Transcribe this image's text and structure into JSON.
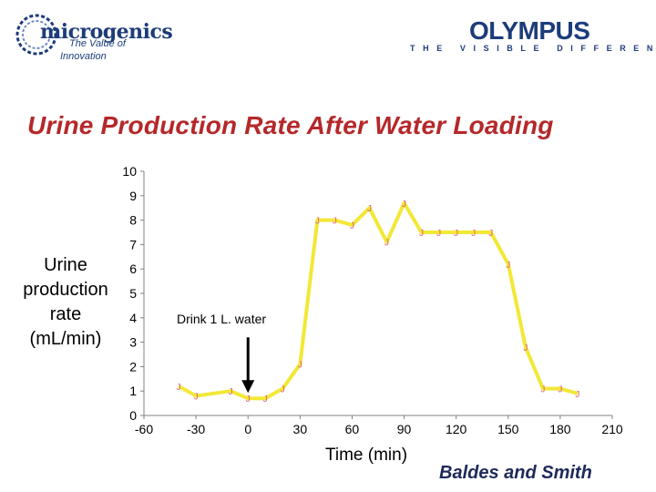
{
  "logos": {
    "left": {
      "name": "microgenics",
      "tagline_line1": "The Value of",
      "tagline_line2": "Innovation"
    },
    "right": {
      "name": "OLYMPUS",
      "tagline": "THE VISIBLE DIFFERENCE"
    }
  },
  "slide": {
    "title": "Urine Production Rate After Water Loading",
    "citation": "Baldes and Smith"
  },
  "colors": {
    "title": "#b5282a",
    "series_line": "#f2e836",
    "marker": "#e0607a",
    "axis": "#808080",
    "arrow": "#000000"
  },
  "chart_data": {
    "type": "line",
    "title": "Urine Production Rate After Water Loading",
    "xlabel": "Time (min)",
    "ylabel_lines": [
      "Urine",
      "production",
      "rate",
      "(mL/min)"
    ],
    "xlim": [
      -60,
      210
    ],
    "ylim": [
      0,
      10
    ],
    "xticks": [
      -60,
      -30,
      0,
      30,
      60,
      90,
      120,
      150,
      180,
      210
    ],
    "yticks": [
      0,
      1,
      2,
      3,
      4,
      5,
      6,
      7,
      8,
      9,
      10
    ],
    "grid": false,
    "marker_char": "J",
    "series": [
      {
        "name": "Urine production rate",
        "x": [
          -40,
          -30,
          -10,
          0,
          10,
          20,
          30,
          40,
          50,
          60,
          70,
          80,
          90,
          100,
          110,
          120,
          130,
          140,
          150,
          160,
          170,
          180,
          190
        ],
        "y": [
          1.2,
          0.8,
          1.0,
          0.7,
          0.7,
          1.1,
          2.1,
          8.0,
          8.0,
          7.8,
          8.5,
          7.1,
          8.7,
          7.5,
          7.5,
          7.5,
          7.5,
          7.5,
          6.2,
          2.8,
          1.1,
          1.1,
          0.9
        ]
      }
    ],
    "annotations": [
      {
        "text": "Drink 1 L. water",
        "x": 0,
        "y_arrow_top": 3.2,
        "y_arrow_bottom": 1.0
      }
    ]
  }
}
